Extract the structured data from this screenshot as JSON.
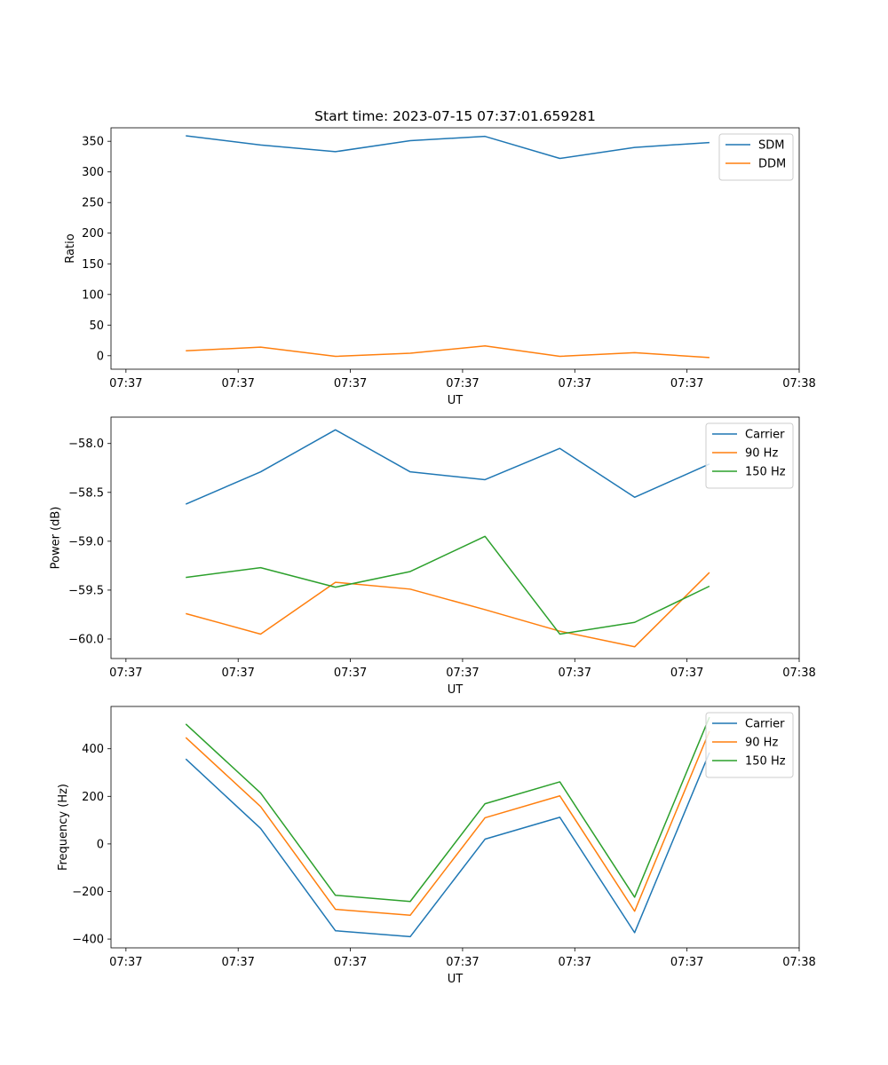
{
  "figure_title": "Start time: 2023-07-15 07:37:01.659281",
  "colors": {
    "blue": "#1f77b4",
    "orange": "#ff7f0e",
    "green": "#2ca02c"
  },
  "chart_data": [
    {
      "type": "line",
      "title": "Start time: 2023-07-15 07:37:01.659281",
      "xlabel": "UT",
      "ylabel": "Ratio",
      "x": [
        1,
        2,
        3,
        4,
        5,
        6,
        7,
        8
      ],
      "xlim": [
        0,
        9.2
      ],
      "xticks": [
        0.2,
        1.7,
        3.2,
        4.7,
        6.2,
        7.7,
        9.2
      ],
      "xtick_labels": [
        "07:37",
        "07:37",
        "07:37",
        "07:37",
        "07:37",
        "07:37",
        "07:38"
      ],
      "ylim": [
        -22,
        372
      ],
      "yticks": [
        0,
        50,
        100,
        150,
        200,
        250,
        300,
        350
      ],
      "ytick_labels": [
        "0",
        "50",
        "100",
        "150",
        "200",
        "250",
        "300",
        "350"
      ],
      "legend_position": "top-right",
      "series": [
        {
          "name": "SDM",
          "color": "#1f77b4",
          "values": [
            359,
            344,
            333,
            351,
            358,
            322,
            340,
            348
          ]
        },
        {
          "name": "DDM",
          "color": "#ff7f0e",
          "values": [
            8,
            14,
            -1,
            4,
            16,
            -1,
            5,
            -3
          ]
        }
      ]
    },
    {
      "type": "line",
      "title": "",
      "xlabel": "UT",
      "ylabel": "Power (dB)",
      "x": [
        1,
        2,
        3,
        4,
        5,
        6,
        7,
        8
      ],
      "xlim": [
        0,
        9.2
      ],
      "xticks": [
        0.2,
        1.7,
        3.2,
        4.7,
        6.2,
        7.7,
        9.2
      ],
      "xtick_labels": [
        "07:37",
        "07:37",
        "07:37",
        "07:37",
        "07:37",
        "07:37",
        "07:38"
      ],
      "ylim": [
        -60.2,
        -57.73
      ],
      "yticks": [
        -60.0,
        -59.5,
        -59.0,
        -58.5,
        -58.0
      ],
      "ytick_labels": [
        "−60.0",
        "−59.5",
        "−59.0",
        "−58.5",
        "−58.0"
      ],
      "legend_position": "top-right",
      "series": [
        {
          "name": "Carrier",
          "color": "#1f77b4",
          "values": [
            -58.62,
            -58.29,
            -57.86,
            -58.29,
            -58.37,
            -58.05,
            -58.55,
            -58.21
          ]
        },
        {
          "name": "90 Hz",
          "color": "#ff7f0e",
          "values": [
            -59.74,
            -59.95,
            -59.42,
            -59.49,
            -59.7,
            -59.92,
            -60.08,
            -59.32
          ]
        },
        {
          "name": "150 Hz",
          "color": "#2ca02c",
          "values": [
            -59.37,
            -59.27,
            -59.47,
            -59.31,
            -58.95,
            -59.95,
            -59.83,
            -59.46
          ]
        }
      ]
    },
    {
      "type": "line",
      "title": "",
      "xlabel": "UT",
      "ylabel": "Frequency (Hz)",
      "x": [
        1,
        2,
        3,
        4,
        5,
        6,
        7,
        8
      ],
      "xlim": [
        0,
        9.2
      ],
      "xticks": [
        0.2,
        1.7,
        3.2,
        4.7,
        6.2,
        7.7,
        9.2
      ],
      "xtick_labels": [
        "07:37",
        "07:37",
        "07:37",
        "07:37",
        "07:37",
        "07:37",
        "07:38"
      ],
      "ylim": [
        -437,
        578
      ],
      "yticks": [
        -400,
        -200,
        0,
        200,
        400
      ],
      "ytick_labels": [
        "−400",
        "−200",
        "0",
        "200",
        "400"
      ],
      "legend_position": "top-right",
      "series": [
        {
          "name": "Carrier",
          "color": "#1f77b4",
          "values": [
            357,
            65,
            -365,
            -390,
            20,
            112,
            -373,
            384
          ]
        },
        {
          "name": "90 Hz",
          "color": "#ff7f0e",
          "values": [
            447,
            157,
            -275,
            -300,
            110,
            202,
            -283,
            474
          ]
        },
        {
          "name": "150 Hz",
          "color": "#2ca02c",
          "values": [
            504,
            214,
            -216,
            -242,
            169,
            261,
            -224,
            533
          ]
        }
      ]
    }
  ]
}
